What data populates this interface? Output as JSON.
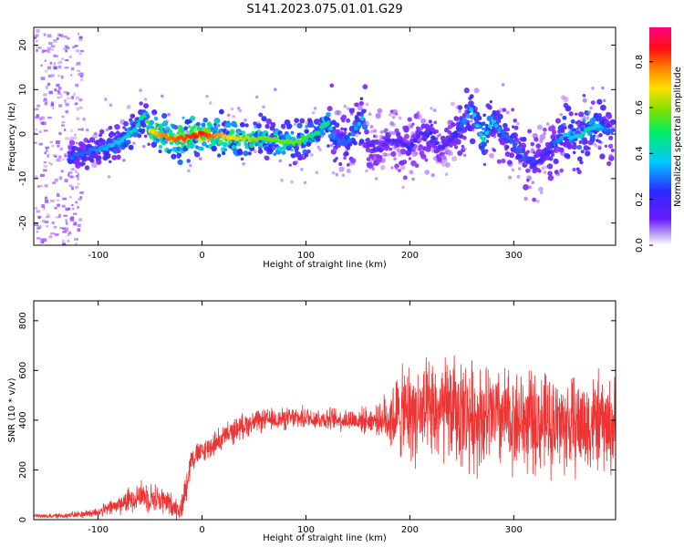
{
  "title": "S141.2023.075.01.01.G29",
  "chart_data": [
    {
      "type": "heatmap",
      "xlabel": "Height of straight line (km)",
      "ylabel": "Frequency (Hz)",
      "xlim": [
        -162,
        398
      ],
      "ylim": [
        -25,
        24
      ],
      "xticks": [
        -100,
        0,
        100,
        200,
        300
      ],
      "yticks": [
        -20,
        -10,
        0,
        10,
        20
      ],
      "colorbar": {
        "label": "Normalized spectral amplitude",
        "range": [
          0.0,
          0.95
        ],
        "ticks": [
          0.0,
          0.2,
          0.4,
          0.6,
          0.8
        ],
        "colormap": "rainbow (purple-blue-cyan-green-yellow-red-magenta)"
      },
      "ridge": {
        "x": [
          -125,
          -110,
          -95,
          -80,
          -62,
          -56,
          -50,
          -40,
          -25,
          0,
          30,
          60,
          90,
          110,
          120,
          128,
          140,
          155,
          160,
          170,
          180,
          190,
          200,
          210,
          220,
          230,
          240,
          250,
          260,
          270,
          280,
          290,
          300,
          310,
          320,
          330,
          340,
          350,
          360,
          370,
          380,
          390
        ],
        "y": [
          -5,
          -4,
          -3,
          -2,
          2,
          4,
          1,
          0,
          -1,
          0,
          -1,
          -1,
          -2,
          0,
          3,
          -1,
          -2,
          4,
          -2,
          -4,
          -1,
          -2,
          -3,
          0,
          0,
          -3,
          -1,
          2,
          6,
          -2,
          3,
          0,
          -2,
          -5,
          -7,
          -5,
          -2,
          0,
          -1,
          1,
          2,
          1
        ],
        "amplitude": [
          0.3,
          0.3,
          0.35,
          0.4,
          0.45,
          0.5,
          0.7,
          0.8,
          0.85,
          0.9,
          0.7,
          0.6,
          0.6,
          0.5,
          0.5,
          0.3,
          0.3,
          0.4,
          0.2,
          0.2,
          0.2,
          0.2,
          0.25,
          0.2,
          0.25,
          0.2,
          0.2,
          0.3,
          0.4,
          0.45,
          0.4,
          0.3,
          0.3,
          0.3,
          0.25,
          0.2,
          0.3,
          0.4,
          0.4,
          0.45,
          0.4,
          0.3
        ]
      }
    },
    {
      "type": "line",
      "xlabel": "Height of straight line (km)",
      "ylabel": "SNR (10 * v/v)",
      "xlim": [
        -162,
        398
      ],
      "ylim": [
        0,
        880
      ],
      "xticks": [
        -100,
        0,
        100,
        200,
        300
      ],
      "yticks": [
        0,
        200,
        400,
        600,
        800
      ],
      "color": "#ee3333",
      "envelope": {
        "x": [
          -162,
          -140,
          -120,
          -100,
          -80,
          -70,
          -60,
          -40,
          -30,
          -20,
          -15,
          -10,
          0,
          20,
          40,
          60,
          80,
          100,
          120,
          150,
          170,
          180,
          190,
          200,
          220,
          240,
          260,
          280,
          300,
          320,
          340,
          360,
          380,
          398
        ],
        "mean": [
          15,
          15,
          20,
          30,
          60,
          80,
          100,
          80,
          60,
          40,
          150,
          250,
          270,
          330,
          380,
          400,
          405,
          410,
          405,
          400,
          400,
          410,
          420,
          430,
          420,
          440,
          420,
          410,
          400,
          390,
          385,
          380,
          390,
          370
        ],
        "spread": [
          8,
          10,
          15,
          20,
          40,
          50,
          60,
          60,
          50,
          40,
          80,
          50,
          50,
          50,
          50,
          45,
          45,
          45,
          45,
          50,
          55,
          130,
          180,
          200,
          210,
          220,
          220,
          210,
          210,
          200,
          200,
          200,
          200,
          190
        ]
      }
    }
  ]
}
